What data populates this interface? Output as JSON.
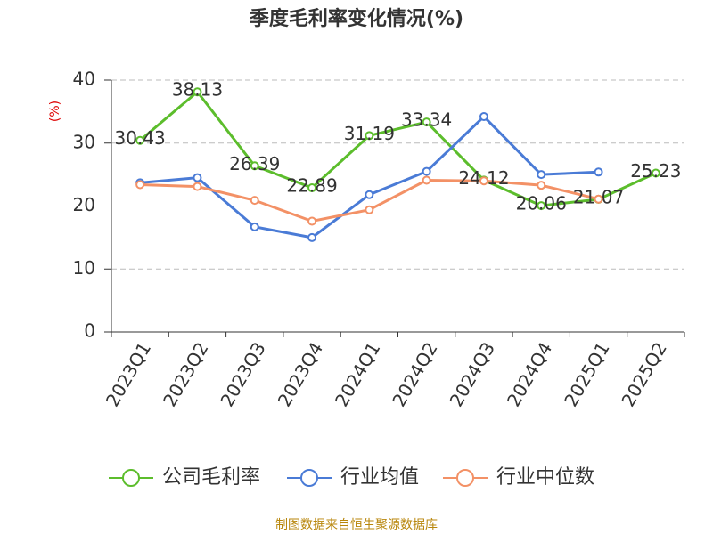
{
  "chart_data": {
    "type": "line",
    "title": "季度毛利率变化情况(%)",
    "y_label": "(%)",
    "categories": [
      "2023Q1",
      "2023Q2",
      "2023Q3",
      "2023Q4",
      "2024Q1",
      "2024Q2",
      "2024Q3",
      "2024Q4",
      "2025Q1",
      "2025Q2"
    ],
    "series": [
      {
        "name": "公司毛利率",
        "color": "#5cbd2c",
        "values": [
          30.43,
          38.13,
          26.39,
          22.89,
          31.19,
          33.34,
          24.12,
          20.06,
          21.07,
          25.23
        ],
        "show_labels": true
      },
      {
        "name": "行业均值",
        "color": "#4a7bd6",
        "values": [
          23.7,
          24.5,
          16.7,
          15.0,
          21.8,
          25.5,
          34.2,
          25.0,
          25.4,
          null
        ],
        "show_labels": false
      },
      {
        "name": "行业中位数",
        "color": "#f39166",
        "values": [
          23.4,
          23.1,
          20.9,
          17.6,
          19.4,
          24.1,
          24.0,
          23.3,
          21.1,
          null
        ],
        "show_labels": false
      }
    ],
    "ylim": [
      0,
      40
    ],
    "yticks": [
      0,
      10,
      20,
      30,
      40
    ],
    "grid": true,
    "source": "制图数据来自恒生聚源数据库"
  }
}
